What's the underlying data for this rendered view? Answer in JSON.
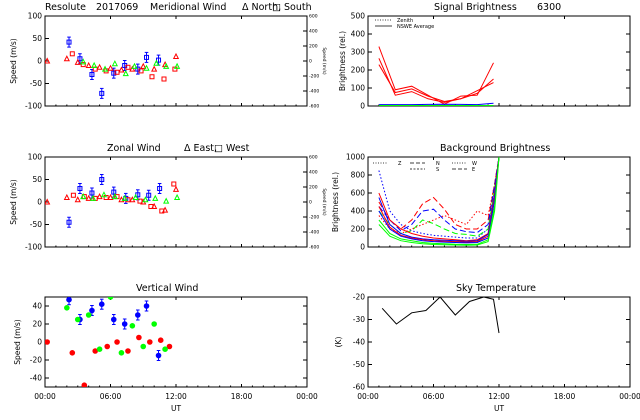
{
  "header": {
    "site": "Resolute",
    "date": "2017069",
    "signal_title": "Signal Brightness",
    "wavelength": "6300"
  },
  "colors": {
    "zenith": "#0000ff",
    "north": "#ff0000",
    "south": "#ff0000",
    "east": "#00ff00",
    "west": "#0000ff",
    "sky": "#000000"
  },
  "chart_data": [
    {
      "type": "scatter",
      "title": "Meridional Wind",
      "legend_text": [
        "Δ North,",
        "□ South"
      ],
      "ylabel": "Speed (m/s)",
      "y2label": "Speed (m/s)",
      "xlim": [
        0,
        24
      ],
      "ylim": [
        -100,
        100
      ],
      "y2lim": [
        -600,
        600
      ],
      "xticks": [
        0,
        6,
        12,
        18,
        24
      ],
      "xticklabels": [
        "00:00",
        "06:00",
        "12:00",
        "18:00",
        "00:00"
      ],
      "yticks": [
        -100,
        -50,
        0,
        50,
        100
      ],
      "y2ticks": [
        -600,
        -400,
        -200,
        0,
        200,
        400,
        600
      ],
      "y2ticklabels": [
        "-600",
        "-400",
        "-200",
        "0",
        "200",
        "400",
        "600"
      ],
      "xtick_labels_shown": false,
      "series": [
        {
          "color": "#0000ff",
          "marker": "square",
          "errorbar": true,
          "x": [
            2.2,
            3.2,
            4.3,
            5.2,
            6.3,
            7.3,
            8.5,
            9.3,
            10.4
          ],
          "y": [
            42,
            5,
            -30,
            -72,
            -27,
            -10,
            -18,
            8,
            2
          ]
        },
        {
          "color": "#ff0000",
          "marker": "square",
          "x": [
            2.5,
            3.5,
            4.6,
            5.6,
            6.6,
            7.6,
            8.8,
            9.8,
            10.9,
            11.9
          ],
          "y": [
            16,
            -8,
            -18,
            -22,
            -25,
            -14,
            -22,
            -35,
            -40,
            -18
          ]
        },
        {
          "color": "#ff0000",
          "marker": "triangle",
          "x": [
            0.2,
            2.0,
            3.0,
            4.0,
            5.0,
            6.0,
            7.0,
            8.0,
            9.0,
            10.0,
            11.0,
            12.0
          ],
          "y": [
            0,
            5,
            -3,
            -10,
            -14,
            -16,
            -20,
            -18,
            -12,
            -18,
            -8,
            10
          ]
        },
        {
          "color": "#00ff00",
          "marker": "triangle",
          "x": [
            3.5,
            4.5,
            5.5,
            6.4,
            7.4,
            8.2,
            9.3,
            10.2,
            11.1,
            12.1
          ],
          "y": [
            -2,
            -10,
            -18,
            -6,
            -28,
            -12,
            -16,
            -5,
            -12,
            -12
          ]
        }
      ]
    },
    {
      "type": "line",
      "title": "Signal Brightness",
      "ylabel": "Brightness (rel.)",
      "legend": [
        "Zenith",
        "NSWE Average"
      ],
      "legend_text": [
        "Zenith",
        "NSWE Average"
      ],
      "xlim": [
        0,
        24
      ],
      "ylim": [
        0,
        500
      ],
      "xticks": [
        0,
        6,
        12,
        18,
        24
      ],
      "xticklabels": [
        "00:00",
        "06:00",
        "12:00",
        "18:00",
        "00:00"
      ],
      "yticks": [
        0,
        100,
        200,
        300,
        400,
        500
      ],
      "xtick_labels_shown": false,
      "series": [
        {
          "color": "#ff0000",
          "x": [
            1,
            2.5,
            4,
            5.5,
            7,
            8.5,
            10,
            11.5
          ],
          "y": [
            330,
            90,
            110,
            60,
            10,
            55,
            60,
            240
          ]
        },
        {
          "color": "#ff0000",
          "x": [
            1,
            2.5,
            4,
            5.5,
            7,
            8.5,
            10,
            11.5
          ],
          "y": [
            265,
            60,
            80,
            40,
            20,
            40,
            70,
            150
          ]
        },
        {
          "color": "#ff0000",
          "x": [
            1,
            2.5,
            4,
            5.5,
            7,
            8.5,
            10,
            11.5
          ],
          "y": [
            230,
            75,
            95,
            55,
            25,
            40,
            85,
            130
          ]
        },
        {
          "color": "#0000ff",
          "x": [
            1,
            2.5,
            4,
            5.5,
            7,
            8.5,
            10,
            11.5
          ],
          "y": [
            8,
            8,
            8,
            9,
            10,
            9,
            8,
            15
          ]
        },
        {
          "color": "#00ff00",
          "x": [
            1,
            2.5,
            4,
            5.5,
            7,
            8.5,
            10,
            11.5
          ],
          "y": [
            3,
            3,
            3,
            3,
            3,
            3,
            3,
            3
          ]
        }
      ]
    },
    {
      "type": "scatter",
      "title": "Zonal Wind",
      "legend_text": [
        "Δ East,",
        "□ West"
      ],
      "ylabel": "Speed (m/s)",
      "y2label": "Speed (m/s)",
      "xlim": [
        0,
        24
      ],
      "ylim": [
        -100,
        100
      ],
      "y2lim": [
        -600,
        600
      ],
      "xticks": [
        0,
        6,
        12,
        18,
        24
      ],
      "xticklabels": [
        "00:00",
        "06:00",
        "12:00",
        "18:00",
        "00:00"
      ],
      "yticks": [
        -100,
        -50,
        0,
        50,
        100
      ],
      "y2ticks": [
        -600,
        -400,
        -200,
        0,
        200,
        400,
        600
      ],
      "y2ticklabels": [
        "-600",
        "-400",
        "-200",
        "0",
        "200",
        "400",
        "600"
      ],
      "xtick_labels_shown": false,
      "series": [
        {
          "color": "#0000ff",
          "marker": "square",
          "errorbar": true,
          "x": [
            2.2,
            3.2,
            4.3,
            5.2,
            6.3,
            7.4,
            8.5,
            9.5,
            10.5
          ],
          "y": [
            -45,
            30,
            20,
            50,
            22,
            8,
            16,
            15,
            30
          ]
        },
        {
          "color": "#ff0000",
          "marker": "square",
          "x": [
            2.6,
            3.6,
            4.6,
            5.6,
            6.6,
            7.6,
            8.7,
            9.7,
            10.7,
            11.8
          ],
          "y": [
            15,
            12,
            8,
            10,
            12,
            5,
            2,
            -10,
            -20,
            40
          ]
        },
        {
          "color": "#ff0000",
          "marker": "triangle",
          "x": [
            0.2,
            2.0,
            3.0,
            4.0,
            5.0,
            6.0,
            7.0,
            8.0,
            9.0,
            10.0,
            11.0,
            12.0
          ],
          "y": [
            0,
            10,
            5,
            8,
            12,
            10,
            5,
            5,
            0,
            -10,
            -18,
            28
          ]
        },
        {
          "color": "#00ff00",
          "marker": "triangle",
          "x": [
            3.5,
            4.4,
            5.4,
            6.4,
            7.3,
            8.3,
            9.2,
            10.1,
            11.1,
            12.1
          ],
          "y": [
            12,
            8,
            16,
            12,
            8,
            10,
            5,
            8,
            2,
            10
          ]
        }
      ]
    },
    {
      "type": "line",
      "title": "Background Brightness",
      "ylabel": "Brightness (rel.)",
      "legend": [
        "Z",
        "N",
        "S",
        "W",
        "E"
      ],
      "legend_text": [
        "Z",
        "N",
        "S",
        "W",
        "E"
      ],
      "xlim": [
        0,
        24
      ],
      "ylim": [
        0,
        1000
      ],
      "xticks": [
        0,
        6,
        12,
        18,
        24
      ],
      "xticklabels": [
        "00:00",
        "06:00",
        "12:00",
        "18:00",
        "00:00"
      ],
      "yticks": [
        0,
        200,
        400,
        600,
        800,
        1000
      ],
      "xtick_labels_shown": false,
      "series": [
        {
          "color": "#0000ff",
          "dash": "1.5,2",
          "x": [
            1,
            2,
            3,
            4,
            5,
            6,
            7,
            8,
            9,
            10,
            11,
            11.6,
            12
          ],
          "y": [
            850,
            400,
            250,
            180,
            150,
            130,
            120,
            110,
            100,
            100,
            200,
            600,
            1000
          ]
        },
        {
          "color": "#ff0000",
          "dash": "6,3",
          "x": [
            1,
            2,
            3,
            4,
            5,
            6,
            7,
            8,
            9,
            10,
            11,
            11.6,
            12
          ],
          "y": [
            500,
            300,
            200,
            300,
            480,
            550,
            420,
            250,
            200,
            200,
            300,
            700,
            1000
          ]
        },
        {
          "color": "#00ff00",
          "dash": "6,3",
          "x": [
            1,
            2,
            3,
            4,
            5,
            6,
            7,
            8,
            9,
            10,
            11,
            11.6,
            12
          ],
          "y": [
            400,
            250,
            150,
            180,
            300,
            260,
            200,
            150,
            140,
            120,
            200,
            650,
            1000
          ]
        },
        {
          "color": "#ff0000",
          "dash": "1.5,2",
          "x": [
            1,
            2,
            3,
            4,
            5,
            6,
            7,
            8,
            9,
            10,
            11,
            11.6,
            12
          ],
          "y": [
            350,
            200,
            150,
            200,
            250,
            300,
            350,
            300,
            250,
            400,
            350,
            700,
            1000
          ]
        },
        {
          "color": "#0000ff",
          "dash": "6,3",
          "x": [
            1,
            2,
            3,
            4,
            5,
            6,
            7,
            8,
            9,
            10,
            11,
            11.6,
            12
          ],
          "y": [
            450,
            300,
            180,
            250,
            400,
            420,
            300,
            200,
            170,
            160,
            250,
            680,
            1000
          ]
        },
        {
          "color": "#ff0000",
          "x": [
            1,
            2,
            3,
            4,
            5,
            6,
            7,
            8,
            9,
            10,
            11,
            11.6,
            12
          ],
          "y": [
            600,
            300,
            200,
            150,
            120,
            100,
            90,
            80,
            70,
            80,
            150,
            600,
            1000
          ]
        },
        {
          "color": "#0000ff",
          "x": [
            1,
            2,
            3,
            4,
            5,
            6,
            7,
            8,
            9,
            10,
            11,
            11.6,
            12
          ],
          "y": [
            550,
            250,
            150,
            110,
            90,
            80,
            75,
            70,
            65,
            70,
            140,
            580,
            1000
          ]
        },
        {
          "color": "#ff0000",
          "x": [
            1,
            2,
            3,
            4,
            5,
            6,
            7,
            8,
            9,
            10,
            11,
            11.6,
            12
          ],
          "y": [
            450,
            220,
            130,
            100,
            80,
            70,
            65,
            60,
            55,
            60,
            120,
            550,
            1000
          ]
        },
        {
          "color": "#0000ff",
          "x": [
            1,
            2,
            3,
            4,
            5,
            6,
            7,
            8,
            9,
            10,
            11,
            11.6,
            12
          ],
          "y": [
            400,
            200,
            120,
            90,
            70,
            60,
            55,
            50,
            45,
            50,
            100,
            520,
            1000
          ]
        },
        {
          "color": "#00ff00",
          "x": [
            1,
            2,
            3,
            4,
            5,
            6,
            7,
            8,
            9,
            10,
            11,
            11.6,
            12
          ],
          "y": [
            300,
            150,
            90,
            70,
            50,
            40,
            35,
            30,
            28,
            30,
            80,
            450,
            1000
          ]
        },
        {
          "color": "#00ff00",
          "x": [
            1,
            2,
            3,
            4,
            5,
            6,
            7,
            8,
            9,
            10,
            11,
            11.6,
            12
          ],
          "y": [
            250,
            120,
            70,
            50,
            35,
            28,
            25,
            22,
            20,
            22,
            60,
            400,
            1000
          ]
        }
      ]
    },
    {
      "type": "scatter",
      "title": "Vertical Wind",
      "ylabel": "Speed (m/s)",
      "xlabel": "UT",
      "xlim": [
        0,
        24
      ],
      "ylim": [
        -50,
        50
      ],
      "xticks": [
        0,
        6,
        12,
        18,
        24
      ],
      "xticklabels": [
        "00:00",
        "06:00",
        "12:00",
        "18:00",
        "00:00"
      ],
      "yticks": [
        -40,
        -20,
        0,
        20,
        40
      ],
      "xtick_labels_shown": true,
      "series": [
        {
          "color": "#0000ff",
          "marker": "circle",
          "errorbar": true,
          "x": [
            2.2,
            3.2,
            4.3,
            5.2,
            6.3,
            7.3,
            8.5,
            9.3,
            10.4
          ],
          "y": [
            47,
            25,
            35,
            42,
            25,
            20,
            30,
            40,
            -15
          ]
        },
        {
          "color": "#ff0000",
          "marker": "circle",
          "x": [
            0.2,
            2.5,
            3.6,
            4.6,
            5.7,
            6.6,
            7.6,
            8.6,
            9.6,
            10.6,
            11.4
          ],
          "y": [
            0,
            -12,
            -48,
            -10,
            -5,
            0,
            -10,
            5,
            0,
            2,
            -5
          ]
        },
        {
          "color": "#00ff00",
          "marker": "circle",
          "x": [
            2.0,
            3.0,
            4.0,
            5.0,
            6.0,
            7.0,
            8.0,
            9.0,
            10.0,
            11.0
          ],
          "y": [
            38,
            25,
            30,
            -8,
            50,
            -12,
            18,
            -5,
            20,
            -8
          ]
        }
      ]
    },
    {
      "type": "line",
      "title": "Sky Temperature",
      "ylabel": "(K)",
      "xlabel": "UT",
      "xlim": [
        0,
        24
      ],
      "ylim": [
        -60,
        -20
      ],
      "xticks": [
        0,
        6,
        12,
        18,
        24
      ],
      "xticklabels": [
        "00:00",
        "06:00",
        "12:00",
        "18:00",
        "00:00"
      ],
      "yticks": [
        -60,
        -50,
        -40,
        -30,
        -20
      ],
      "xtick_labels_shown": true,
      "series": [
        {
          "color": "#000000",
          "x": [
            1.3,
            2.6,
            4.0,
            5.3,
            6.6,
            8.0,
            9.3,
            10.6,
            11.5,
            12.0
          ],
          "y": [
            -25,
            -32,
            -27,
            -26,
            -20,
            -28,
            -22,
            -20,
            -21,
            -36
          ]
        }
      ]
    }
  ]
}
